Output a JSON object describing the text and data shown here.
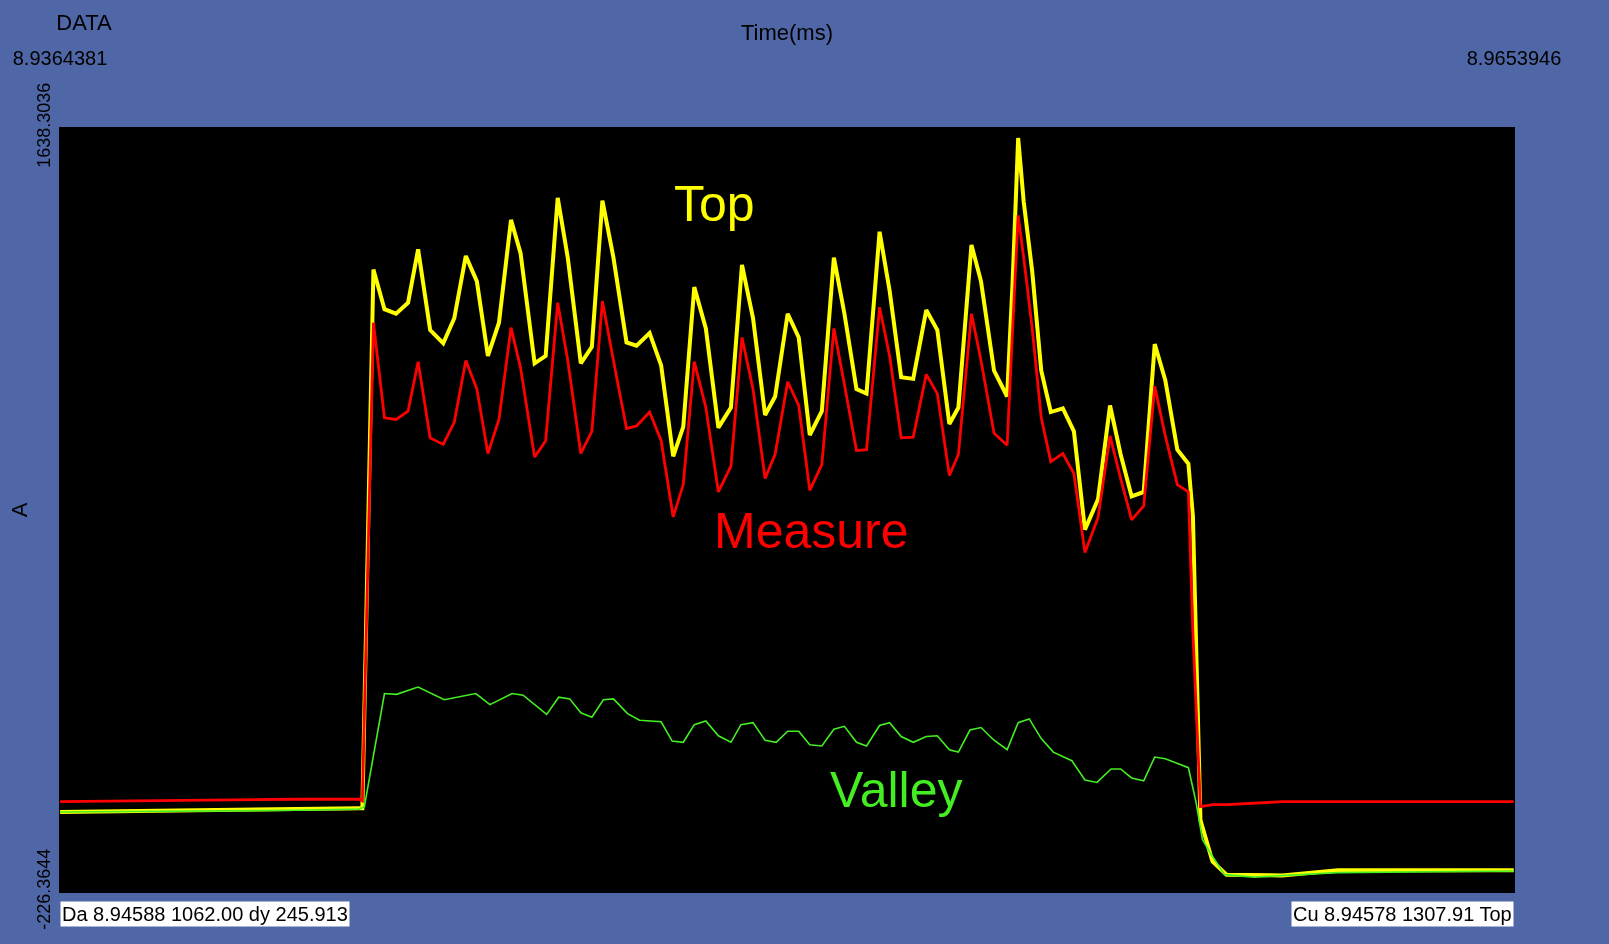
{
  "chart_data": {
    "type": "line",
    "title": "DATA",
    "xlabel": "Time(ms)",
    "ylabel": "A",
    "xlim": [
      8.9364381,
      8.9653946
    ],
    "xticks": [
      8.9364381,
      8.9653946
    ],
    "ylim": [
      -226.3644,
      1638.3036
    ],
    "yticks": [
      -226.3644,
      1638.3036
    ],
    "x": [
      8.93644,
      8.94114,
      8.9424,
      8.94246,
      8.94268,
      8.9429,
      8.94313,
      8.94337,
      8.94357,
      8.94381,
      8.94407,
      8.94429,
      8.94452,
      8.94474,
      8.94496,
      8.94518,
      8.94542,
      8.94561,
      8.94589,
      8.94611,
      8.94635,
      8.94655,
      8.94681,
      8.94703,
      8.94724,
      8.94746,
      8.94772,
      8.94792,
      8.94818,
      8.94841,
      8.94865,
      8.94885,
      8.94907,
      8.9493,
      8.94955,
      8.9498,
      8.95002,
      8.95024,
      8.95048,
      8.95068,
      8.95093,
      8.95115,
      8.95137,
      8.95161,
      8.95185,
      8.95206,
      8.9523,
      8.9525,
      8.95276,
      8.95296,
      8.95319,
      8.95343,
      8.95369,
      8.95391,
      8.95415,
      8.95433,
      8.95459,
      8.95478,
      8.95504,
      8.9553,
      8.95541,
      8.95552,
      8.95563,
      8.9558,
      8.95598,
      8.95617,
      8.95641,
      8.95663,
      8.95685,
      8.95711,
      8.95735,
      8.95756,
      8.95778,
      8.95802,
      8.95824,
      8.95845,
      8.95869,
      8.95891,
      8.959,
      8.95915,
      8.95939,
      8.95967,
      8.96078,
      8.96189,
      8.96539
    ],
    "series": [
      {
        "name": "Top",
        "color": "#ffff00",
        "values": [
          -31,
          -24,
          -22,
          -22,
          1293,
          1196,
          1185,
          1212,
          1342,
          1145,
          1113,
          1174,
          1326,
          1264,
          1082,
          1163,
          1414,
          1333,
          1064,
          1082,
          1468,
          1322,
          1064,
          1104,
          1461,
          1322,
          1115,
          1107,
          1138,
          1059,
          837,
          909,
          1250,
          1149,
          907,
          956,
          1304,
          1174,
          938,
          983,
          1185,
          1127,
          889,
          947,
          1322,
          1185,
          1001,
          990,
          1385,
          1241,
          1030,
          1026,
          1194,
          1145,
          916,
          956,
          1353,
          1264,
          1046,
          983,
          1264,
          1614,
          1459,
          1288,
          1046,
          945,
          954,
          898,
          658,
          732,
          961,
          842,
          739,
          750,
          1111,
          1023,
          853,
          819,
          691,
          -51,
          -152,
          -184,
          -186,
          -173,
          -173
        ]
      },
      {
        "name": "Measure",
        "color": "#ff0000",
        "values": [
          -6,
          0,
          0,
          -4,
          1163,
          931,
          927,
          947,
          1068,
          882,
          866,
          920,
          1071,
          1001,
          844,
          927,
          1151,
          1053,
          835,
          875,
          1212,
          1071,
          844,
          898,
          1216,
          1071,
          905,
          911,
          945,
          875,
          689,
          768,
          1068,
          956,
          750,
          813,
          1127,
          1001,
          783,
          842,
          1019,
          961,
          754,
          817,
          1149,
          1012,
          851,
          853,
          1201,
          1082,
          882,
          884,
          1037,
          990,
          790,
          842,
          1185,
          1071,
          893,
          864,
          1149,
          1425,
          1322,
          1149,
          931,
          824,
          844,
          795,
          602,
          687,
          887,
          783,
          682,
          716,
          1008,
          887,
          768,
          750,
          406,
          -18,
          -13,
          -13,
          -6,
          -6,
          -6
        ]
      },
      {
        "name": "Valley",
        "color": "#44ee22",
        "x": [
          8.93644,
          8.94114,
          8.9424,
          8.9425,
          8.9429,
          8.94314,
          8.94357,
          8.94409,
          8.94472,
          8.945,
          8.94544,
          8.94566,
          8.94613,
          8.94637,
          8.94659,
          8.94681,
          8.94703,
          8.94726,
          8.94746,
          8.94774,
          8.94798,
          8.94841,
          8.94863,
          8.94885,
          8.94907,
          8.9493,
          8.94955,
          8.9498,
          8.95,
          8.95024,
          8.95048,
          8.9507,
          8.95093,
          8.95115,
          8.95137,
          8.95161,
          8.95185,
          8.95206,
          8.9523,
          8.9525,
          8.95276,
          8.95296,
          8.95319,
          8.95343,
          8.95369,
          8.95391,
          8.95415,
          8.95433,
          8.95456,
          8.95478,
          8.95504,
          8.9553,
          8.95552,
          8.95574,
          8.95598,
          8.95622,
          8.95659,
          8.95685,
          8.95709,
          8.95737,
          8.95756,
          8.95778,
          8.95802,
          8.95824,
          8.95845,
          8.95891,
          8.95906,
          8.95919,
          8.95934,
          8.95963,
          8.96022,
          8.96189,
          8.96539
        ],
        "values": [
          -31,
          -27,
          -24,
          -18,
          258,
          256,
          274,
          243,
          258,
          231,
          258,
          254,
          207,
          249,
          245,
          211,
          200,
          243,
          245,
          209,
          193,
          189,
          142,
          139,
          182,
          191,
          155,
          139,
          182,
          187,
          144,
          139,
          166,
          166,
          133,
          130,
          171,
          178,
          139,
          130,
          180,
          187,
          153,
          139,
          153,
          155,
          121,
          115,
          169,
          175,
          144,
          121,
          187,
          196,
          148,
          115,
          94,
          47,
          41,
          74,
          74,
          52,
          45,
          103,
          99,
          77,
          -6,
          -98,
          -130,
          -184,
          -190,
          -179,
          -175
        ]
      }
    ],
    "annotations": [
      "Da 8.94588 1062.00 dy 245.913",
      "Cu 8.94578 1307.91 Top"
    ]
  }
}
